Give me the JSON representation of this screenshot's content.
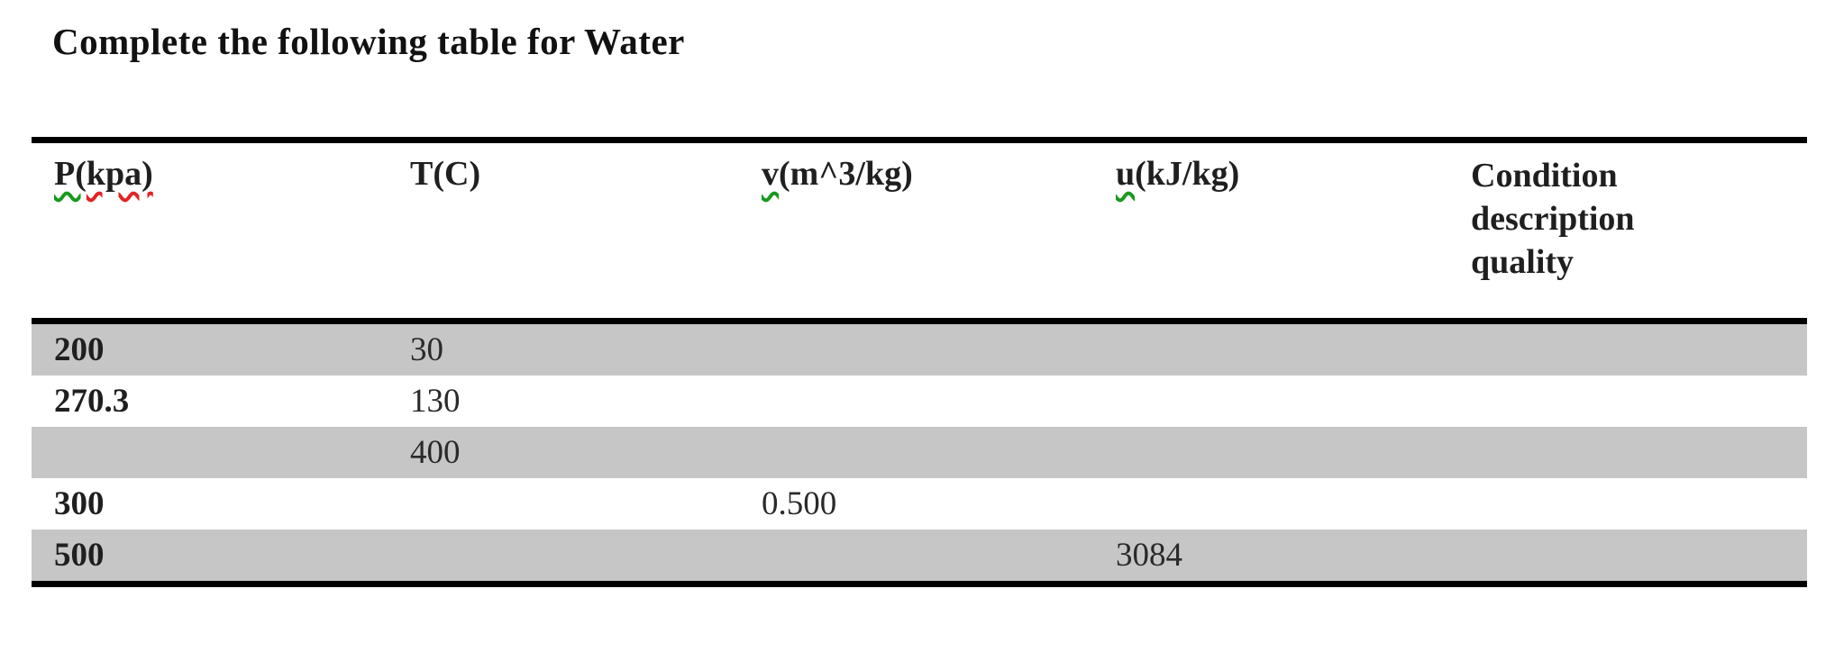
{
  "title": "Complete the following table for Water",
  "table": {
    "headers": {
      "p": {
        "grammar_flagged_part": "P(",
        "spelling_flagged_part": "kpa)"
      },
      "t": "T(C)",
      "v": {
        "grammar_flagged_part": "v",
        "rest": "(m^3/kg)"
      },
      "u": {
        "grammar_flagged_part": "u",
        "rest": "(kJ/kg)"
      },
      "condition": {
        "line1": "Condition",
        "line2": "description",
        "line3": "quality"
      }
    },
    "rows": [
      {
        "p": "200",
        "t": "30",
        "v": "",
        "u": "",
        "condition": ""
      },
      {
        "p": "270.3",
        "t": "130",
        "v": "",
        "u": "",
        "condition": ""
      },
      {
        "p": "",
        "t": "400",
        "v": "",
        "u": "",
        "condition": ""
      },
      {
        "p": "300",
        "t": "",
        "v": "0.500",
        "u": "",
        "condition": ""
      },
      {
        "p": "500",
        "t": "",
        "v": "",
        "u": "3084",
        "condition": ""
      }
    ],
    "colors": {
      "shaded_row": "#c6c6c6",
      "border": "#000000",
      "squiggle_green": "#18991e",
      "squiggle_red": "#e02424"
    }
  }
}
